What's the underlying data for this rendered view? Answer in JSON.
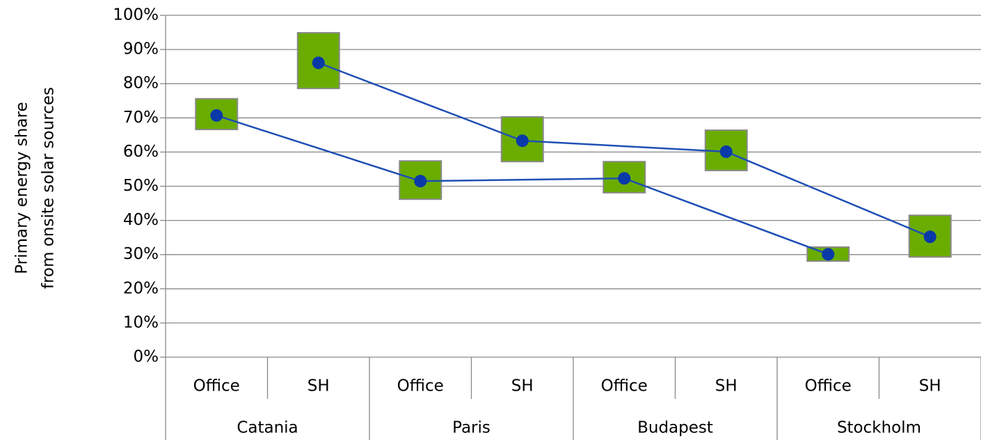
{
  "chart_data": {
    "type": "line",
    "ylabel": [
      "Primary energy share",
      "from onsite solar sources"
    ],
    "categories": [
      "Catania",
      "Paris",
      "Budapest",
      "Stockholm"
    ],
    "series": [
      {
        "name": "Office",
        "color": "#1f4fb4",
        "values": [
          70.7,
          51.5,
          52.3,
          30.1
        ],
        "low": [
          66.6,
          46.2,
          48.1,
          28.1
        ],
        "high": [
          75.6,
          57.4,
          57.2,
          32.2
        ]
      },
      {
        "name": "SH",
        "color": "#1f4fb4",
        "values": [
          86.1,
          63.3,
          60.1,
          35.2
        ],
        "low": [
          78.6,
          57.2,
          54.6,
          29.3
        ],
        "high": [
          94.9,
          70.3,
          66.4,
          41.5
        ]
      }
    ],
    "box_color": "#6aad00",
    "ylim": [
      0,
      100
    ],
    "yticks": [
      {
        "value": 0,
        "label": "0%"
      },
      {
        "value": 10,
        "label": "10%"
      },
      {
        "value": 20,
        "label": "20%"
      },
      {
        "value": 30,
        "label": "30%"
      },
      {
        "value": 40,
        "label": "40%"
      },
      {
        "value": 50,
        "label": "50%"
      },
      {
        "value": 60,
        "label": "60%"
      },
      {
        "value": 70,
        "label": "70%"
      },
      {
        "value": 80,
        "label": "80%"
      },
      {
        "value": 90,
        "label": "90%"
      },
      {
        "value": 100,
        "label": "100%"
      }
    ],
    "grid": true
  }
}
